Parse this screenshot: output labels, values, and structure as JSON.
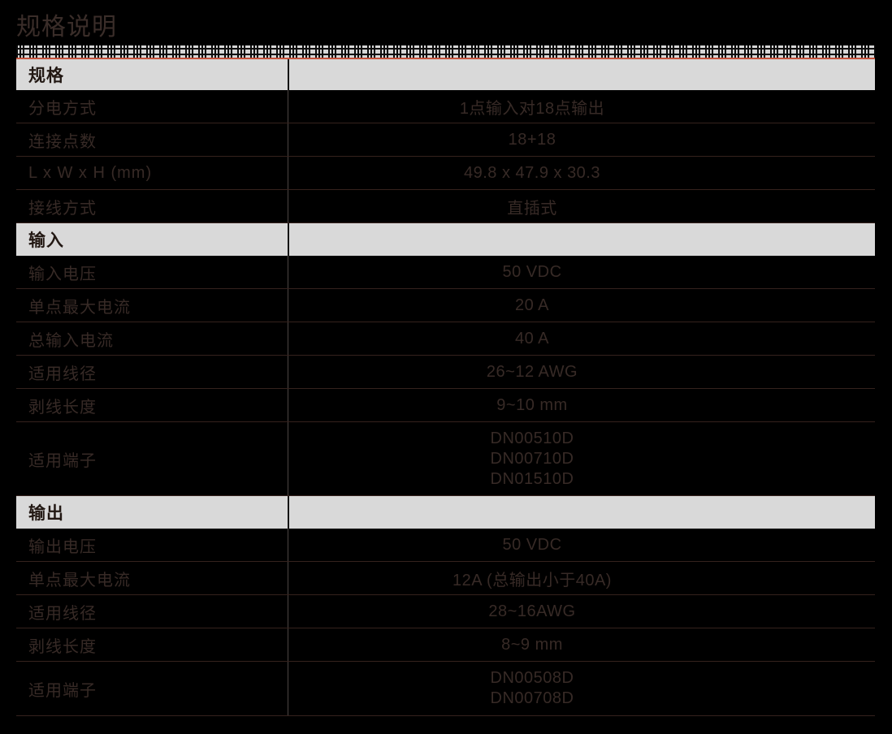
{
  "page": {
    "title": "规格说明"
  },
  "decor": {
    "accent_color": "#c4523c",
    "strip_gray": "#d6d6d6",
    "band_gray": "#d9d9d9"
  },
  "table": {
    "sections": [
      {
        "header": "规格",
        "rows": [
          {
            "label": "分电方式",
            "value": "1点输入对18点输出"
          },
          {
            "label": "连接点数",
            "value": "18+18"
          },
          {
            "label": "L x W x H (mm)",
            "value": "49.8 x 47.9 x 30.3"
          },
          {
            "label": "接线方式",
            "value": "直插式"
          }
        ]
      },
      {
        "header": "输入",
        "rows": [
          {
            "label": "输入电压",
            "value": "50 VDC"
          },
          {
            "label": "单点最大电流",
            "value": "20 A"
          },
          {
            "label": "总输入电流",
            "value": "40 A"
          },
          {
            "label": "适用线径",
            "value": "26~12 AWG"
          },
          {
            "label": "剥线长度",
            "value": "9~10 mm"
          },
          {
            "label": "适用端子",
            "value_lines": [
              "DN00510D",
              "DN00710D",
              "DN01510D"
            ]
          }
        ]
      },
      {
        "header": "输出",
        "rows": [
          {
            "label": "输出电压",
            "value": "50 VDC"
          },
          {
            "label": "单点最大电流",
            "value": "12A (总输出小于40A)"
          },
          {
            "label": "适用线径",
            "value": "28~16AWG"
          },
          {
            "label": "剥线长度",
            "value": "8~9 mm"
          },
          {
            "label": "适用端子",
            "value_lines": [
              "DN00508D",
              "DN00708D"
            ]
          }
        ]
      }
    ]
  }
}
